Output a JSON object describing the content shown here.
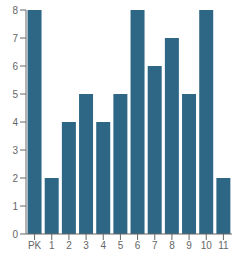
{
  "chart_data": {
    "type": "bar",
    "categories": [
      "PK",
      "1",
      "2",
      "3",
      "4",
      "5",
      "6",
      "7",
      "8",
      "9",
      "10",
      "11"
    ],
    "values": [
      8,
      2,
      4,
      5,
      4,
      5,
      8,
      6,
      7,
      5,
      8,
      2
    ],
    "color": "#2e6685",
    "ylim": [
      0,
      8
    ],
    "yticks": [
      0,
      1,
      2,
      3,
      4,
      5,
      6,
      7,
      8
    ],
    "grid": false
  }
}
